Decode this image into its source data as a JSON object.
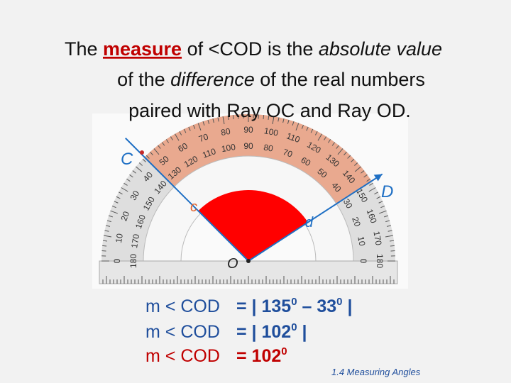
{
  "title": {
    "line1": [
      "The ",
      "measure",
      " of <COD is the ",
      "absolute value"
    ],
    "line2": [
      "of the ",
      "difference",
      " of the real numbers"
    ],
    "line3": "paired with Ray OC and Ray OD."
  },
  "protractor": {
    "outer_scale": [
      0,
      10,
      20,
      30,
      40,
      50,
      60,
      70,
      80,
      90,
      100,
      110,
      120,
      130,
      140,
      150,
      160,
      170,
      180
    ],
    "inner_scale": [
      180,
      170,
      160,
      150,
      140,
      130,
      120,
      110,
      100,
      90,
      80,
      70,
      60,
      50,
      40,
      30,
      20,
      10,
      0
    ],
    "points": {
      "C": "C",
      "c": "c",
      "D": "D",
      "d": "d",
      "O": "O"
    }
  },
  "equations": [
    [
      "m < COD",
      "= | 135",
      "0",
      " – 33",
      "0",
      " |"
    ],
    [
      "m < COD",
      "= | 102",
      "0",
      " |"
    ],
    [
      "m < COD",
      "= 102",
      "0"
    ]
  ],
  "footer": "1.4 Measuring Angles"
}
